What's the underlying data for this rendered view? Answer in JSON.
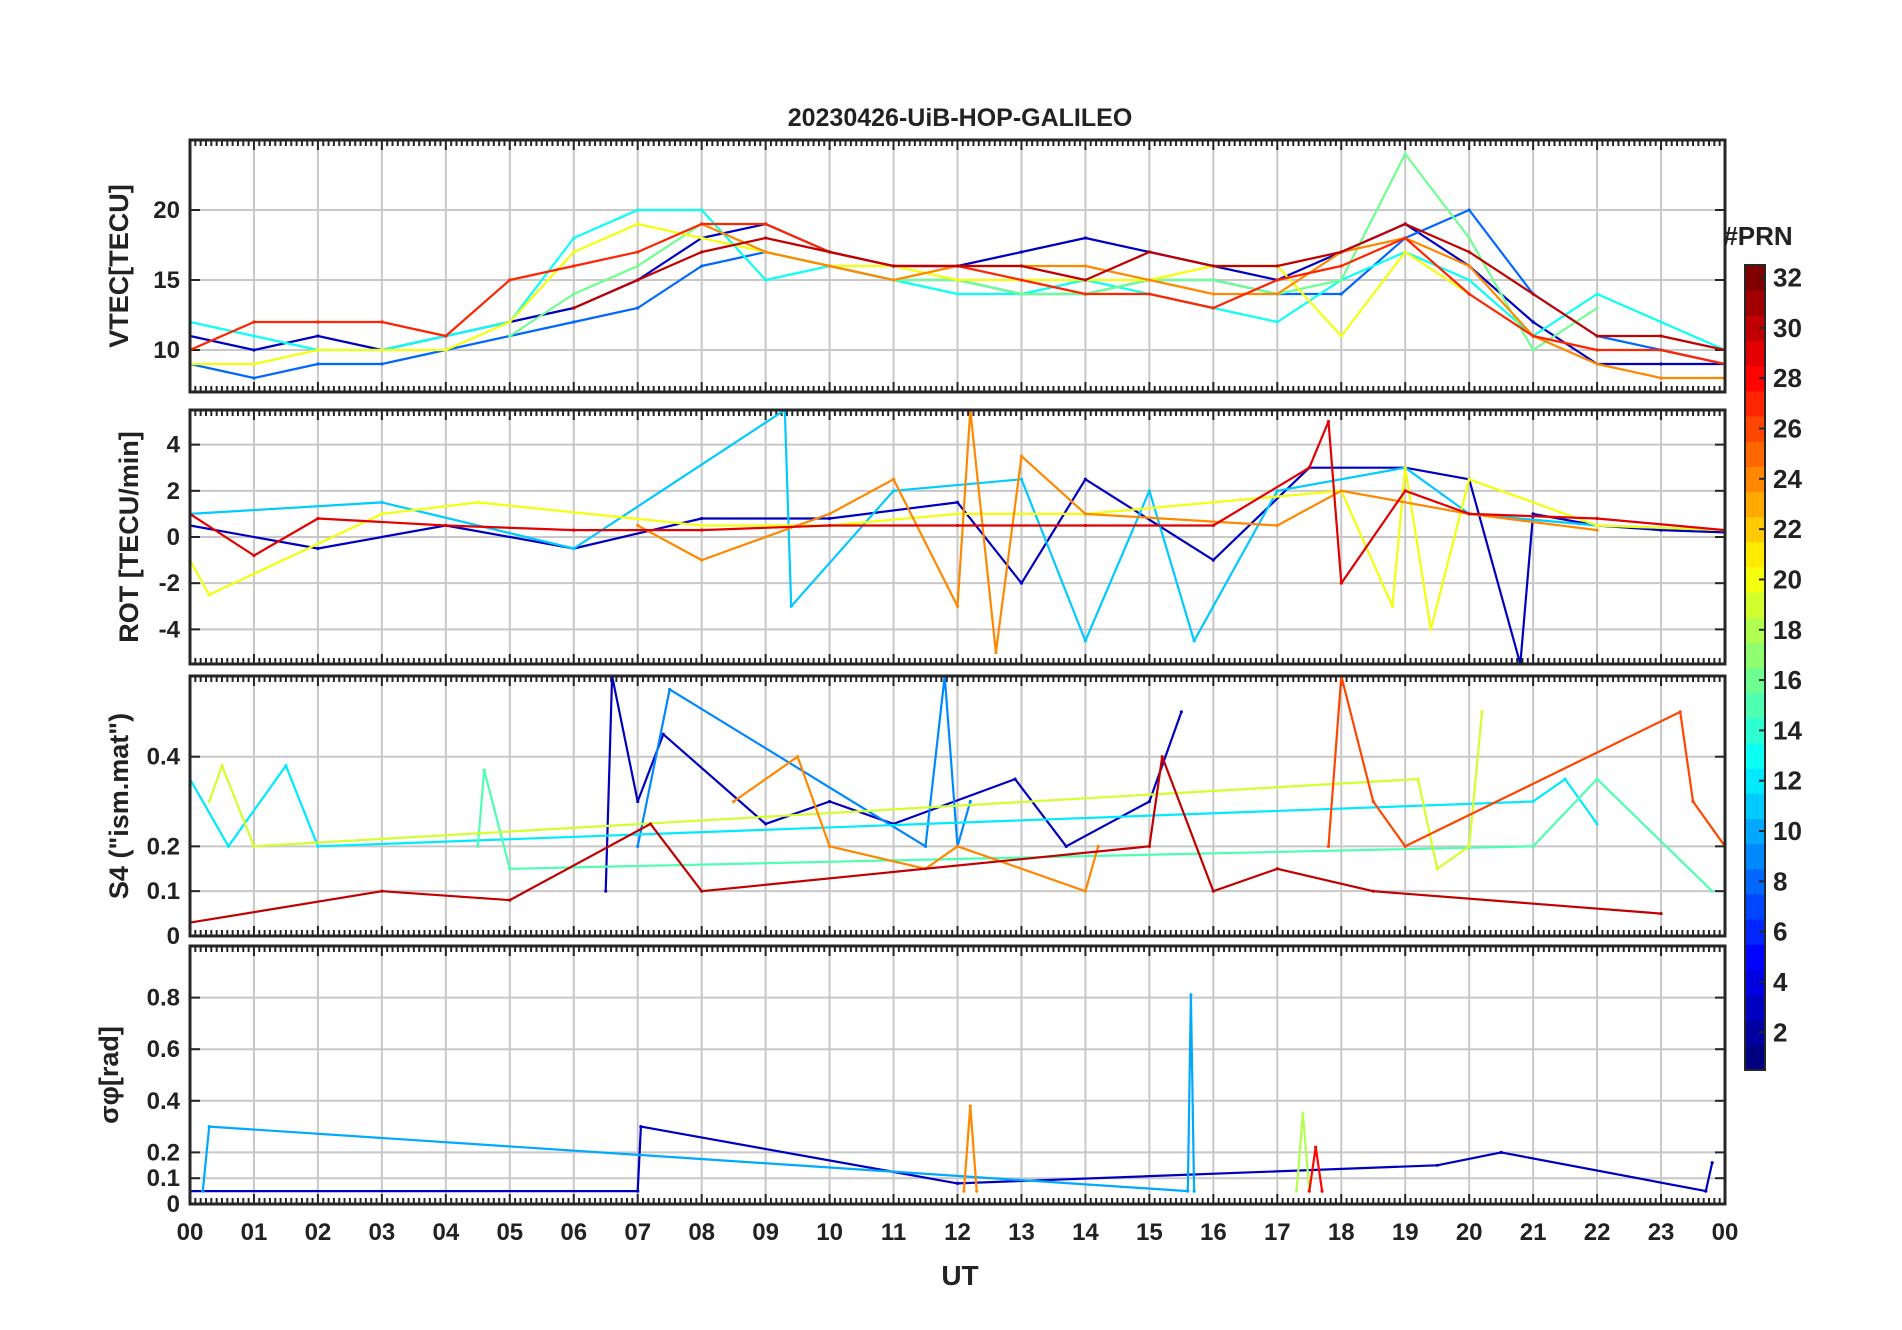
{
  "figure": {
    "title": "20230426-UiB-HOP-GALILEO",
    "xlabel": "UT",
    "x_tick_labels": [
      "00",
      "01",
      "02",
      "03",
      "04",
      "05",
      "06",
      "07",
      "08",
      "09",
      "10",
      "11",
      "12",
      "13",
      "14",
      "15",
      "16",
      "17",
      "18",
      "19",
      "20",
      "21",
      "22",
      "23",
      "00"
    ],
    "colorbar": {
      "label": "#PRN",
      "range": [
        1,
        32
      ],
      "tick_labels": [
        "2",
        "4",
        "6",
        "8",
        "10",
        "12",
        "14",
        "16",
        "18",
        "20",
        "22",
        "24",
        "26",
        "28",
        "30",
        "32"
      ],
      "colormap": "jet"
    }
  },
  "chart_data": [
    {
      "type": "line",
      "panel": "vtec",
      "ylabel": "VTEC[TECU]",
      "ylim": [
        7,
        25
      ],
      "y_ticks": [
        10,
        15,
        20
      ],
      "y_tick_labels": [
        "10",
        "15",
        "20"
      ],
      "xlim": [
        0,
        24
      ],
      "grid": true,
      "series_note_values": "approximate traces per PRN (hour, TECU)",
      "series": [
        {
          "prn": 3,
          "x": [
            0,
            1,
            2,
            3,
            4,
            5,
            6,
            7,
            8,
            9,
            10,
            11,
            12,
            13,
            14,
            15,
            16,
            17,
            18,
            19,
            20,
            21,
            22,
            23,
            24
          ],
          "y": [
            11,
            10,
            11,
            10,
            11,
            12,
            13,
            15,
            18,
            19,
            17,
            16,
            16,
            17,
            18,
            17,
            16,
            15,
            17,
            19,
            16,
            12,
            9,
            9,
            9
          ]
        },
        {
          "prn": 8,
          "x": [
            0,
            1,
            2,
            3,
            4,
            5,
            6,
            7,
            8,
            9,
            10,
            11,
            12,
            13,
            14,
            15,
            16,
            17,
            18,
            19,
            20,
            21,
            22,
            23,
            24
          ],
          "y": [
            9,
            8,
            9,
            9,
            10,
            11,
            12,
            13,
            16,
            17,
            16,
            15,
            15,
            14,
            14,
            15,
            15,
            14,
            14,
            18,
            20,
            14,
            11,
            10,
            9
          ]
        },
        {
          "prn": 13,
          "x": [
            0,
            1,
            2,
            3,
            4,
            5,
            6,
            7,
            8,
            9,
            10,
            11,
            12,
            13,
            14,
            15,
            16,
            17,
            18,
            19,
            20,
            21,
            22,
            23,
            24
          ],
          "y": [
            12,
            11,
            10,
            10,
            11,
            12,
            18,
            20,
            20,
            15,
            16,
            15,
            14,
            14,
            15,
            14,
            13,
            12,
            15,
            17,
            15,
            11,
            14,
            12,
            10
          ]
        },
        {
          "prn": 16,
          "x": [
            5,
            6,
            7,
            8,
            9,
            10,
            11,
            12,
            13,
            14,
            15,
            16,
            17,
            18,
            19,
            20,
            21,
            22
          ],
          "y": [
            11,
            14,
            16,
            19,
            17,
            16,
            15,
            15,
            14,
            14,
            15,
            15,
            14,
            15,
            24,
            18,
            10,
            13
          ]
        },
        {
          "prn": 20,
          "x": [
            0,
            1,
            2,
            3,
            4,
            5,
            6,
            7,
            8,
            9,
            10,
            11,
            12,
            13,
            14,
            15,
            16,
            17,
            18,
            19,
            20
          ],
          "y": [
            9,
            9,
            10,
            10,
            10,
            12,
            17,
            19,
            18,
            17,
            16,
            16,
            15,
            15,
            15,
            15,
            16,
            16,
            11,
            17,
            14
          ]
        },
        {
          "prn": 24,
          "x": [
            8,
            9,
            10,
            11,
            12,
            13,
            14,
            15,
            16,
            17,
            18,
            19,
            20,
            21,
            22,
            23,
            24
          ],
          "y": [
            19,
            17,
            16,
            15,
            16,
            16,
            16,
            15,
            14,
            14,
            17,
            18,
            16,
            11,
            9,
            8,
            8
          ]
        },
        {
          "prn": 27,
          "x": [
            0,
            1,
            2,
            3,
            4,
            5,
            6,
            7,
            8,
            9,
            10,
            11,
            12,
            13,
            14,
            15,
            16,
            17,
            18,
            19,
            20,
            21,
            22,
            23,
            24
          ],
          "y": [
            10,
            12,
            12,
            12,
            11,
            15,
            16,
            17,
            19,
            19,
            17,
            16,
            16,
            15,
            14,
            14,
            13,
            15,
            16,
            18,
            14,
            11,
            10,
            10,
            9
          ]
        },
        {
          "prn": 30,
          "x": [
            6,
            7,
            8,
            9,
            10,
            11,
            12,
            13,
            14,
            15,
            16,
            17,
            18,
            19,
            20,
            21,
            22,
            23,
            24
          ],
          "y": [
            13,
            15,
            17,
            18,
            17,
            16,
            16,
            16,
            15,
            17,
            16,
            16,
            17,
            19,
            17,
            14,
            11,
            11,
            10
          ]
        }
      ]
    },
    {
      "type": "line",
      "panel": "rot",
      "ylabel": "ROT [TECU/min]",
      "ylim": [
        -5.5,
        5.5
      ],
      "y_ticks": [
        -4,
        -2,
        0,
        2,
        4
      ],
      "y_tick_labels": [
        "-4",
        "-2",
        "0",
        "2",
        "4"
      ],
      "xlim": [
        0,
        24
      ],
      "grid": true,
      "series": [
        {
          "prn": 3,
          "x": [
            0,
            2,
            4,
            6,
            8,
            10,
            12,
            13,
            14,
            16,
            17.5,
            19,
            20,
            20.8,
            21,
            22,
            23,
            24
          ],
          "y": [
            0.5,
            -0.5,
            0.5,
            -0.5,
            0.8,
            0.8,
            1.5,
            -2,
            2.5,
            -1,
            3,
            3,
            2.5,
            -5.5,
            1,
            0.5,
            0.3,
            0.2
          ]
        },
        {
          "prn": 11,
          "x": [
            0,
            3,
            6,
            9.3,
            9.4,
            11,
            13,
            14,
            15,
            15.7,
            17,
            19,
            20,
            22,
            24
          ],
          "y": [
            1,
            1.5,
            -0.5,
            5.5,
            -3,
            2,
            2.5,
            -4.5,
            2,
            -4.5,
            2,
            3,
            1,
            0.5,
            0.3
          ]
        },
        {
          "prn": 20,
          "x": [
            0,
            0.3,
            3,
            4.5,
            8,
            10,
            12,
            14,
            18,
            18.8,
            19,
            19.4,
            20,
            22,
            24
          ],
          "y": [
            -1,
            -2.5,
            1,
            1.5,
            0.5,
            0.5,
            1,
            1,
            2,
            -3,
            3,
            -4,
            2.5,
            0.5,
            0.3
          ]
        },
        {
          "prn": 24,
          "x": [
            7,
            8,
            10,
            11,
            12,
            12.2,
            12.6,
            13,
            14,
            17,
            18,
            20,
            22
          ],
          "y": [
            0.5,
            -1,
            1,
            2.5,
            -3,
            5.5,
            -5,
            3.5,
            1,
            0.5,
            2,
            1,
            0.3
          ]
        },
        {
          "prn": 29,
          "x": [
            0,
            1,
            2,
            4,
            6,
            8,
            10,
            12,
            14,
            16,
            17.5,
            17.8,
            18,
            19,
            20,
            22,
            24
          ],
          "y": [
            1,
            -0.8,
            0.8,
            0.5,
            0.3,
            0.3,
            0.5,
            0.5,
            0.5,
            0.5,
            3,
            5,
            -2,
            2,
            1,
            0.8,
            0.3
          ]
        }
      ]
    },
    {
      "type": "line",
      "panel": "s4",
      "ylabel": "S4 (\"ism.mat\")",
      "ylim": [
        0,
        0.58
      ],
      "y_ticks": [
        0,
        0.1,
        0.2,
        0.4
      ],
      "y_tick_labels": [
        "0",
        "0.1",
        "0.2",
        "0.4"
      ],
      "xlim": [
        0,
        24
      ],
      "grid": true,
      "series": [
        {
          "prn": 3,
          "x": [
            6.5,
            6.6,
            7,
            7.4,
            9,
            10,
            11,
            12.9,
            13.7,
            15,
            15.5
          ],
          "y": [
            0.1,
            0.58,
            0.3,
            0.45,
            0.25,
            0.3,
            0.25,
            0.35,
            0.2,
            0.3,
            0.5
          ]
        },
        {
          "prn": 9,
          "x": [
            7,
            7.5,
            11.5,
            11.8,
            12,
            12.2
          ],
          "y": [
            0.2,
            0.55,
            0.2,
            0.58,
            0.2,
            0.3
          ]
        },
        {
          "prn": 12,
          "x": [
            0,
            0.6,
            1.5,
            2,
            21,
            21.5,
            22
          ],
          "y": [
            0.35,
            0.2,
            0.38,
            0.2,
            0.3,
            0.35,
            0.25
          ]
        },
        {
          "prn": 15,
          "x": [
            4.5,
            4.6,
            5,
            21,
            22,
            23.8
          ],
          "y": [
            0.2,
            0.37,
            0.15,
            0.2,
            0.35,
            0.1
          ]
        },
        {
          "prn": 19,
          "x": [
            0.3,
            0.5,
            1,
            19.2,
            19.5,
            20,
            20.2
          ],
          "y": [
            0.3,
            0.38,
            0.2,
            0.35,
            0.15,
            0.2,
            0.5
          ]
        },
        {
          "prn": 24,
          "x": [
            8.5,
            9.5,
            10,
            11.5,
            12,
            14,
            14.2
          ],
          "y": [
            0.3,
            0.4,
            0.2,
            0.15,
            0.2,
            0.1,
            0.2
          ]
        },
        {
          "prn": 26,
          "x": [
            17.8,
            18,
            18.5,
            19,
            23.3,
            23.5,
            24
          ],
          "y": [
            0.2,
            0.58,
            0.3,
            0.2,
            0.5,
            0.3,
            0.2
          ]
        },
        {
          "prn": 30,
          "x": [
            0,
            3,
            5,
            7.2,
            8,
            15,
            15.2,
            16,
            17,
            18.5,
            23
          ],
          "y": [
            0.03,
            0.1,
            0.08,
            0.25,
            0.1,
            0.2,
            0.4,
            0.1,
            0.15,
            0.1,
            0.05
          ]
        }
      ]
    },
    {
      "type": "line",
      "panel": "sigma_phi",
      "ylabel": "σφ[rad]",
      "ylim": [
        0,
        1.0
      ],
      "y_ticks": [
        0,
        0.1,
        0.2,
        0.4,
        0.6,
        0.8
      ],
      "y_tick_labels": [
        "0",
        "0.1",
        "0.2",
        "0.4",
        "0.6",
        "0.8"
      ],
      "xlim": [
        0,
        24
      ],
      "grid": true,
      "series": [
        {
          "prn": 3,
          "x": [
            0,
            7,
            7.05,
            12,
            19.5,
            20.5,
            23.7,
            23.8
          ],
          "y": [
            0.05,
            0.05,
            0.3,
            0.08,
            0.15,
            0.2,
            0.05,
            0.16
          ]
        },
        {
          "prn": 10,
          "x": [
            0.2,
            0.3,
            15.6,
            15.65,
            15.7
          ],
          "y": [
            0.05,
            0.3,
            0.05,
            0.81,
            0.05
          ]
        },
        {
          "prn": 18,
          "x": [
            17.3,
            17.4,
            17.5
          ],
          "y": [
            0.05,
            0.35,
            0.05
          ]
        },
        {
          "prn": 24,
          "x": [
            12.1,
            12.2,
            12.3
          ],
          "y": [
            0.05,
            0.38,
            0.05
          ]
        },
        {
          "prn": 28,
          "x": [
            17.5,
            17.6,
            17.7
          ],
          "y": [
            0.05,
            0.22,
            0.05
          ]
        }
      ]
    }
  ]
}
